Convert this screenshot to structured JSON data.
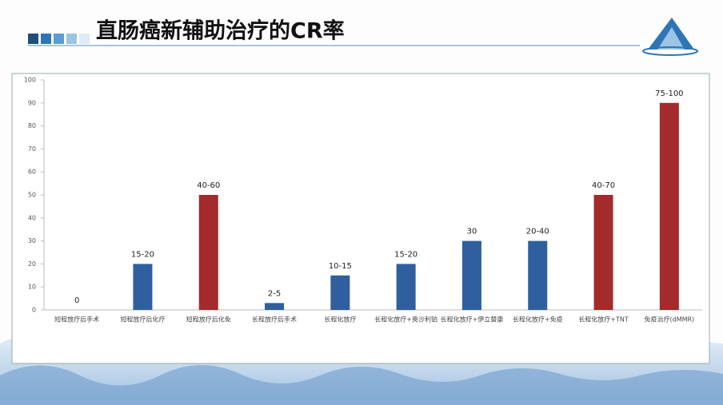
{
  "chart_data": {
    "type": "bar",
    "title": "直肠癌新辅助治疗的CR率",
    "categories": [
      "短程放疗后手术",
      "短程放疗后化疗",
      "短程放疗后化免",
      "长程放疗后手术",
      "长程化放疗",
      "长程化放疗+奥沙利铂",
      "长程化放疗+伊立替康",
      "长程化放疗+免疫",
      "长程化放疗+TNT",
      "免疫治疗(dMMR)"
    ],
    "values": [
      0,
      20,
      50,
      3,
      15,
      20,
      30,
      30,
      50,
      90
    ],
    "value_labels": [
      "0",
      "15-20",
      "40-60",
      "2-5",
      "10-15",
      "15-20",
      "30",
      "20-40",
      "40-70",
      "75-100"
    ],
    "colors": [
      "#2f5f9e",
      "#2f5f9e",
      "#a32b2b",
      "#2f5f9e",
      "#2f5f9e",
      "#2f5f9e",
      "#2f5f9e",
      "#2f5f9e",
      "#a32b2b",
      "#a32b2b"
    ],
    "ylim": [
      0,
      100
    ],
    "yticks": [
      0,
      10,
      20,
      30,
      40,
      50,
      60,
      70,
      80,
      90,
      100
    ],
    "grid": false
  }
}
